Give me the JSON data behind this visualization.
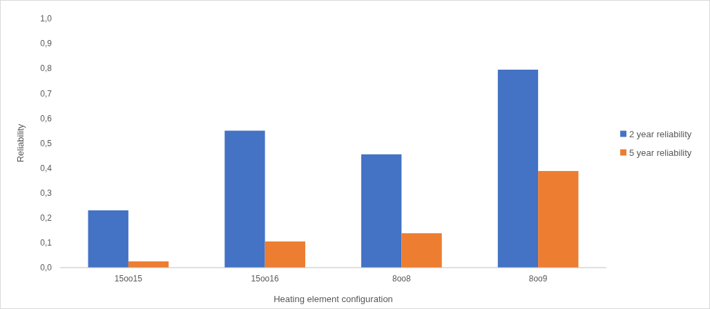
{
  "chart_data": {
    "type": "bar",
    "xlabel": "Heating element configuration",
    "ylabel": "Reliability",
    "categories": [
      "15oo15",
      "15oo16",
      "8oo8",
      "8oo9"
    ],
    "series": [
      {
        "name": "2 year reliability",
        "color": "#4472c4",
        "values": [
          0.23,
          0.55,
          0.455,
          0.795
        ]
      },
      {
        "name": "5 year reliability",
        "color": "#ed7d31",
        "values": [
          0.025,
          0.105,
          0.138,
          0.388
        ]
      }
    ],
    "ylim": [
      0,
      1
    ],
    "yticks": [
      {
        "value": 0,
        "label": "0,0"
      },
      {
        "value": 0.1,
        "label": "0,1"
      },
      {
        "value": 0.2,
        "label": "0,2"
      },
      {
        "value": 0.3,
        "label": "0,3"
      },
      {
        "value": 0.4,
        "label": "0,4"
      },
      {
        "value": 0.5,
        "label": "0,5"
      },
      {
        "value": 0.6,
        "label": "0,6"
      },
      {
        "value": 0.7,
        "label": "0,7"
      },
      {
        "value": 0.8,
        "label": "0,8"
      },
      {
        "value": 0.9,
        "label": "0,9"
      },
      {
        "value": 1,
        "label": "1,0"
      }
    ],
    "grid": false,
    "legend": "right"
  }
}
